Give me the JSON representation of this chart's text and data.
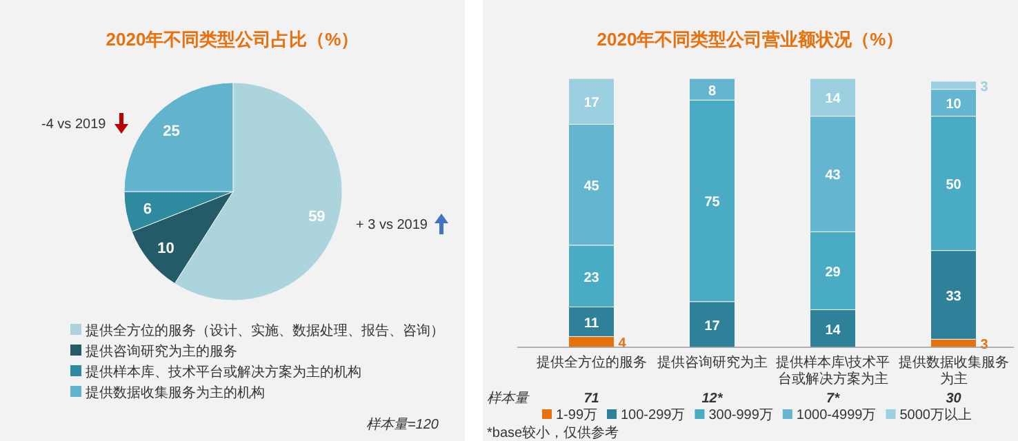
{
  "chart_data": [
    {
      "type": "pie",
      "title": "2020年不同类型公司占比（%）",
      "categories": [
        "提供全方位的服务（设计、实施、数据处理、报告、咨询）",
        "提供咨询研究为主的服务",
        "提供样本库、技术平台或解决方案为主的机构",
        "提供数据收集服务为主的机构"
      ],
      "values": [
        59,
        10,
        6,
        25
      ],
      "colors": [
        "#acd4dd",
        "#245b69",
        "#2e8a9e",
        "#62b4cc"
      ],
      "data_labels": true,
      "legend": "bottom",
      "annotations": [
        "-4 vs 2019",
        "+ 3 vs 2019",
        "样本量=120"
      ]
    },
    {
      "type": "bar",
      "stacked": true,
      "title": "2020年不同类型公司营业额状况（%）",
      "categories": [
        "提供全方位的服务",
        "提供咨询研究为主",
        "提供样本库\\技术平台或解决方案为主",
        "提供数据收集服务为主"
      ],
      "series": [
        {
          "name": "1-99万",
          "color": "#e8710f",
          "values": [
            4,
            null,
            null,
            3
          ]
        },
        {
          "name": "100-299万",
          "color": "#2e8199",
          "values": [
            11,
            17,
            14,
            33
          ]
        },
        {
          "name": "300-999万",
          "color": "#4aabc5",
          "values": [
            23,
            75,
            29,
            50
          ]
        },
        {
          "name": "1000-4999万",
          "color": "#64b5cf",
          "values": [
            45,
            8,
            43,
            10
          ]
        },
        {
          "name": "5000万以上",
          "color": "#9ccfdf",
          "values": [
            17,
            null,
            14,
            3
          ]
        }
      ],
      "data_labels": true,
      "legend": "bottom",
      "annotations": [
        "样本量",
        "71",
        "12*",
        "7*",
        "30",
        "*base较小，仅供参考"
      ]
    }
  ]
}
